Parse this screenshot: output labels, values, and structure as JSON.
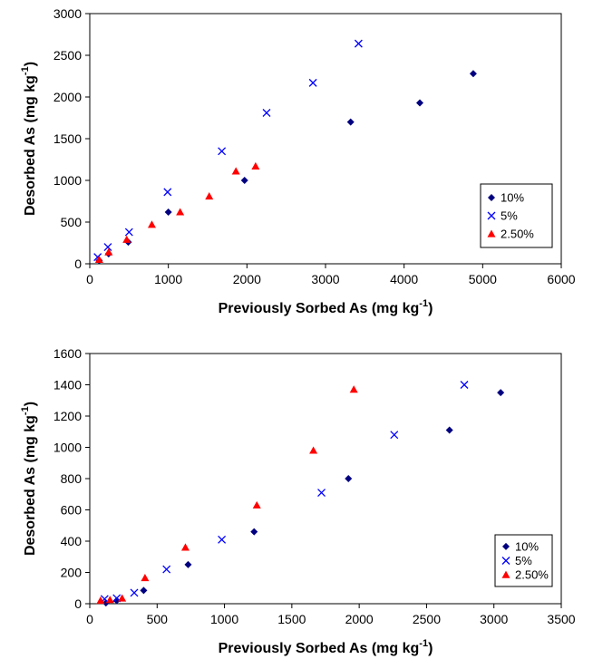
{
  "chart_data": [
    {
      "type": "scatter",
      "xlabel": "Previously Sorbed As (mg kg",
      "ylabel": "Desorbed As (mg kg",
      "label_superscript": "-1",
      "label_close": ")",
      "xlim": [
        0,
        6000
      ],
      "ylim": [
        0,
        3000
      ],
      "xticks": [
        0,
        1000,
        2000,
        3000,
        4000,
        5000,
        6000
      ],
      "yticks": [
        0,
        500,
        1000,
        1500,
        2000,
        2500,
        3000
      ],
      "grid": false,
      "legend": "bottom-right",
      "series": [
        {
          "name": "10%",
          "marker": "diamond",
          "color": "#000080",
          "points": [
            [
              120,
              40
            ],
            [
              240,
              120
            ],
            [
              490,
              260
            ],
            [
              1000,
              620
            ],
            [
              1970,
              1000
            ],
            [
              3320,
              1700
            ],
            [
              4200,
              1930
            ],
            [
              4880,
              2280
            ]
          ]
        },
        {
          "name": "5%",
          "marker": "x",
          "color": "#0000ff",
          "points": [
            [
              100,
              80
            ],
            [
              230,
              200
            ],
            [
              500,
              380
            ],
            [
              990,
              860
            ],
            [
              1680,
              1350
            ],
            [
              2250,
              1810
            ],
            [
              2840,
              2170
            ],
            [
              3420,
              2640
            ]
          ]
        },
        {
          "name": "2.50%",
          "marker": "triangle",
          "color": "#ff0000",
          "points": [
            [
              120,
              50
            ],
            [
              240,
              140
            ],
            [
              470,
              290
            ],
            [
              790,
              470
            ],
            [
              1150,
              620
            ],
            [
              1520,
              810
            ],
            [
              1860,
              1110
            ],
            [
              2110,
              1170
            ]
          ]
        }
      ]
    },
    {
      "type": "scatter",
      "xlabel": "Previously Sorbed As (mg kg",
      "ylabel": "Desorbed As (mg kg",
      "label_superscript": "-1",
      "label_close": ")",
      "xlim": [
        0,
        3500
      ],
      "ylim": [
        0,
        1600
      ],
      "xticks": [
        0,
        500,
        1000,
        1500,
        2000,
        2500,
        3000,
        3500
      ],
      "yticks": [
        0,
        200,
        400,
        600,
        800,
        1000,
        1200,
        1400,
        1600
      ],
      "grid": false,
      "legend": "bottom-right",
      "series": [
        {
          "name": "10%",
          "marker": "diamond",
          "color": "#000080",
          "points": [
            [
              120,
              5
            ],
            [
              200,
              20
            ],
            [
              400,
              85
            ],
            [
              730,
              250
            ],
            [
              1220,
              460
            ],
            [
              1920,
              800
            ],
            [
              2670,
              1110
            ],
            [
              3050,
              1350
            ]
          ]
        },
        {
          "name": "5%",
          "marker": "x",
          "color": "#0000ff",
          "points": [
            [
              110,
              30
            ],
            [
              200,
              35
            ],
            [
              330,
              70
            ],
            [
              570,
              220
            ],
            [
              980,
              410
            ],
            [
              1720,
              710
            ],
            [
              2260,
              1080
            ],
            [
              2780,
              1400
            ]
          ]
        },
        {
          "name": "2.50%",
          "marker": "triangle",
          "color": "#ff0000",
          "points": [
            [
              80,
              20
            ],
            [
              150,
              25
            ],
            [
              240,
              35
            ],
            [
              410,
              165
            ],
            [
              710,
              360
            ],
            [
              1240,
              630
            ],
            [
              1660,
              980
            ],
            [
              1960,
              1370
            ]
          ]
        }
      ]
    }
  ]
}
